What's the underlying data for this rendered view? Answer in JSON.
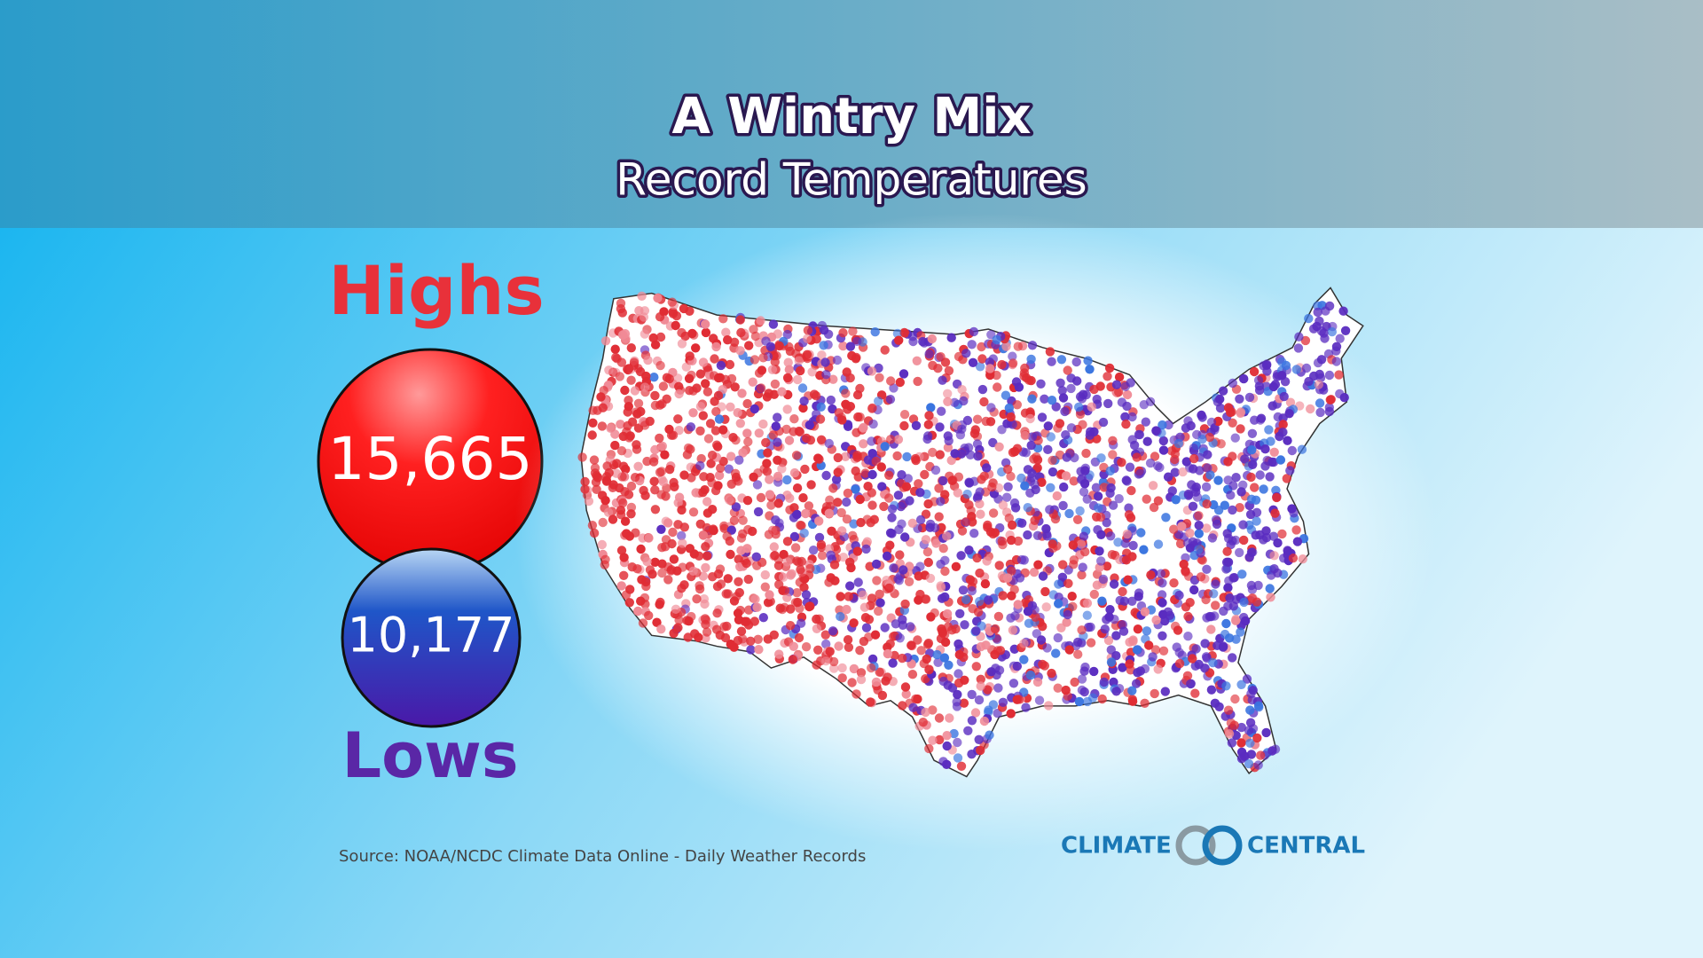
{
  "header": {
    "title": "A Wintry Mix",
    "subtitle": "Record Temperatures"
  },
  "highs": {
    "label": "Highs",
    "value": "15,665"
  },
  "lows": {
    "label": "Lows",
    "value": "10,177"
  },
  "source": "Source: NOAA/NCDC Climate Data Online - Daily Weather Records",
  "logo": {
    "left": "CLIMATE",
    "right": "CENTRAL"
  }
}
